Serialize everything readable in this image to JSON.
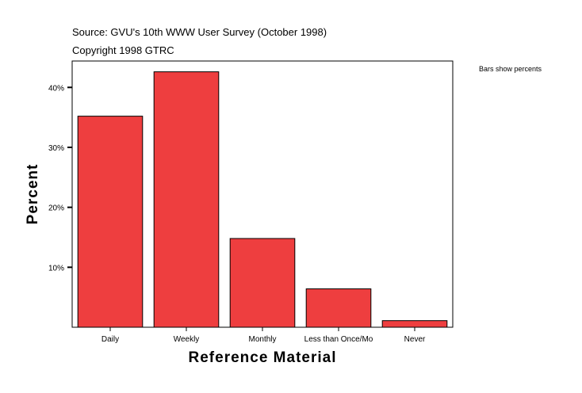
{
  "header": {
    "source": "Source: GVU's 10th WWW User Survey (October 1998)",
    "copyright": "Copyright 1998 GTRC"
  },
  "note": "Bars show percents",
  "colors": {
    "bar": "#ee3e3f",
    "axis": "#000000",
    "frame": "#000000"
  },
  "chart_data": {
    "type": "bar",
    "categories": [
      "Daily",
      "Weekly",
      "Monthly",
      "Less than Once/Mo",
      "Never"
    ],
    "values": [
      35.2,
      42.6,
      14.8,
      6.4,
      1.1
    ],
    "xlabel": "Reference Material",
    "ylabel": "Percent",
    "ylim": [
      0,
      44.4
    ],
    "yticks": [
      10,
      20,
      30,
      40
    ],
    "ytick_labels": [
      "10%",
      "20%",
      "30%",
      "40%"
    ],
    "grid": false,
    "legend": "none"
  }
}
